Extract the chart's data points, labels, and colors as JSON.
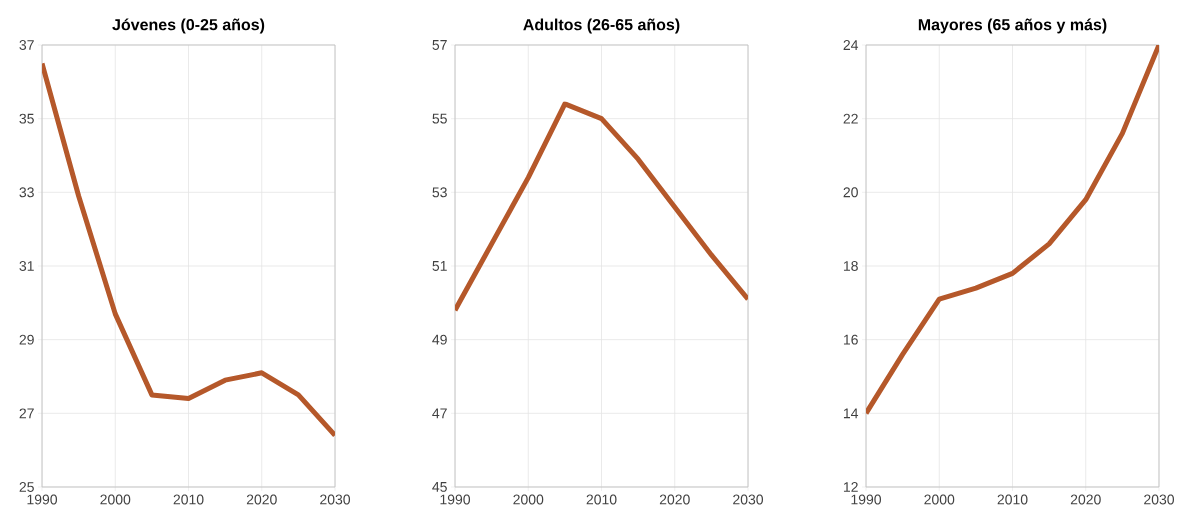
{
  "chart_data": [
    {
      "type": "line",
      "title": "Jóvenes (0-25 años)",
      "x": [
        1990,
        1995,
        2000,
        2005,
        2010,
        2015,
        2020,
        2025,
        2030
      ],
      "series": [
        {
          "color": "#b5582a",
          "values": [
            36.5,
            32.9,
            29.7,
            27.5,
            27.4,
            27.9,
            28.1,
            27.5,
            26.4
          ]
        }
      ],
      "xlim": [
        1990,
        2030
      ],
      "xticks": [
        1990,
        2000,
        2010,
        2020,
        2030
      ],
      "ylim": [
        25,
        37
      ],
      "yticks": [
        25,
        27,
        29,
        31,
        33,
        35,
        37
      ],
      "grid": true
    },
    {
      "type": "line",
      "title": "Adultos (26-65 años)",
      "x": [
        1990,
        1995,
        2000,
        2005,
        2010,
        2015,
        2020,
        2025,
        2030
      ],
      "series": [
        {
          "color": "#b5582a",
          "values": [
            49.8,
            51.6,
            53.4,
            55.4,
            55.0,
            53.9,
            52.6,
            51.3,
            50.1
          ]
        }
      ],
      "xlim": [
        1990,
        2030
      ],
      "xticks": [
        1990,
        2000,
        2010,
        2020,
        2030
      ],
      "ylim": [
        45,
        57
      ],
      "yticks": [
        45,
        47,
        49,
        51,
        53,
        55,
        57
      ],
      "grid": true
    },
    {
      "type": "line",
      "title": "Mayores (65 años y más)",
      "x": [
        1990,
        1995,
        2000,
        2005,
        2010,
        2015,
        2020,
        2025,
        2030
      ],
      "series": [
        {
          "color": "#b5582a",
          "values": [
            14.0,
            15.6,
            17.1,
            17.4,
            17.8,
            18.6,
            19.8,
            21.6,
            24.0
          ]
        }
      ],
      "xlim": [
        1990,
        2030
      ],
      "xticks": [
        1990,
        2000,
        2010,
        2020,
        2030
      ],
      "ylim": [
        12,
        24
      ],
      "yticks": [
        12,
        14,
        16,
        18,
        20,
        22,
        24
      ],
      "grid": true
    }
  ]
}
